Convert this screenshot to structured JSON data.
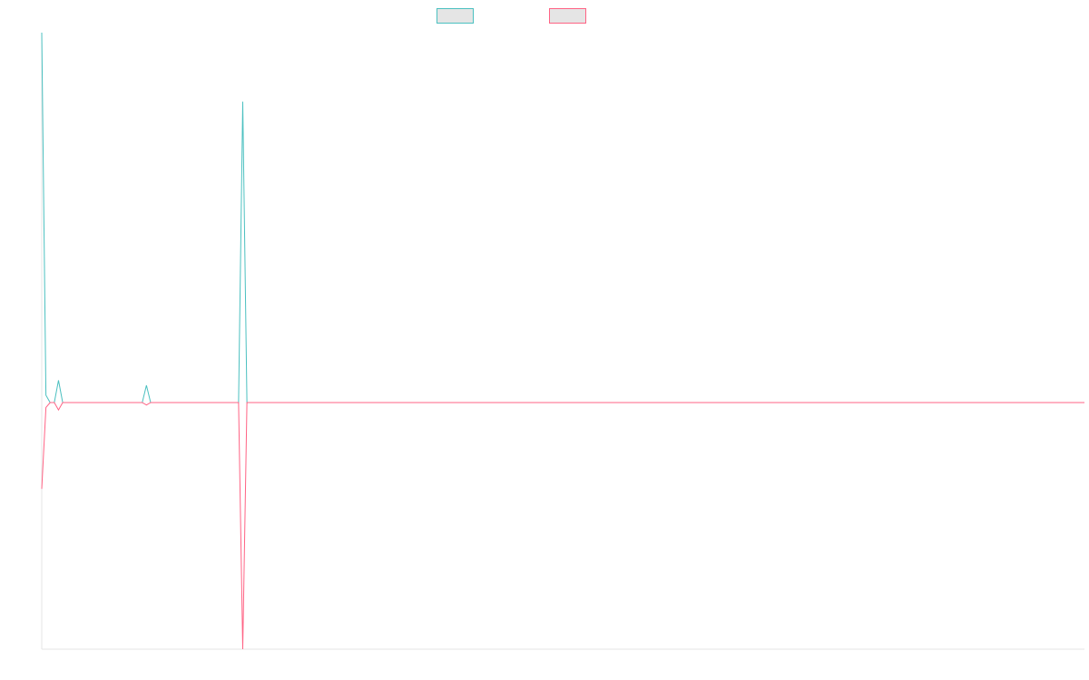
{
  "chart_data": {
    "type": "line",
    "title": "",
    "xlabel": "",
    "ylabel": "",
    "grid": false,
    "axes_visible": true,
    "tick_labels_visible": false,
    "x": [
      0,
      1,
      2,
      3,
      4,
      5,
      6,
      7,
      8,
      9,
      10,
      11,
      12,
      13,
      14,
      15,
      16,
      17,
      18,
      19,
      20,
      21,
      22,
      23,
      24,
      25,
      26,
      27,
      28,
      29,
      30,
      31,
      32,
      33,
      34,
      35,
      36,
      37,
      38,
      39,
      40,
      41,
      42,
      43,
      44,
      45,
      46,
      47,
      48,
      49,
      50,
      51,
      52,
      53,
      54,
      55,
      56,
      57,
      58,
      59,
      60,
      61,
      62,
      63,
      64,
      65,
      66,
      67,
      68,
      69,
      70,
      71,
      72,
      73,
      74,
      75,
      76,
      77,
      78,
      79,
      80,
      81,
      82,
      83,
      84,
      85,
      86,
      87,
      88,
      89,
      90,
      91,
      92,
      93,
      94,
      95,
      96,
      97,
      98,
      99,
      100,
      101,
      102,
      103,
      104,
      105,
      106,
      107,
      108,
      109,
      110,
      111,
      112,
      113,
      114,
      115,
      116,
      117,
      118,
      119,
      120,
      121,
      122,
      123,
      124,
      125,
      126,
      127,
      128,
      129,
      130,
      131,
      132,
      133,
      134,
      135,
      136,
      137,
      138,
      139,
      140,
      141,
      142,
      143,
      144,
      145,
      146,
      147,
      148,
      149,
      150,
      151,
      152,
      153,
      154,
      155,
      156,
      157,
      158,
      159,
      160,
      161,
      162,
      163,
      164,
      165,
      166,
      167,
      168,
      169,
      170,
      171,
      172,
      173,
      174,
      175,
      176,
      177,
      178,
      179,
      180,
      181,
      182,
      183,
      184,
      185,
      186,
      187,
      188,
      189,
      190,
      191,
      192,
      193,
      194,
      195,
      196,
      197,
      198,
      199,
      200,
      201,
      202,
      203,
      204,
      205,
      206,
      207,
      208,
      209,
      210,
      211,
      212,
      213,
      214,
      215,
      216,
      217,
      218,
      219,
      220,
      221,
      222,
      223,
      224,
      225,
      226,
      227,
      228,
      229,
      230,
      231,
      232,
      233,
      234,
      235,
      236,
      237,
      238,
      239,
      240,
      241,
      242,
      243,
      244,
      245,
      246,
      247,
      248,
      249
    ],
    "ylim": [
      -1,
      1.5
    ],
    "legend": {
      "placement": "top-center",
      "entries": [
        {
          "label": "",
          "color": "#4bc0c0",
          "fill": "#e5e5e5"
        },
        {
          "label": "",
          "color": "#ff6384",
          "fill": "#e5e5e5"
        }
      ]
    },
    "series": [
      {
        "color": "#4bc0c0",
        "sparse_values": {
          "0": 1.5,
          "1": 0.03,
          "2": 0.0,
          "3": 0.0,
          "4": 0.09,
          "5": 0.0,
          "24": 0.0,
          "25": 0.07,
          "26": 0.0,
          "47": 0.0,
          "48": 1.22,
          "49": 0.0
        },
        "default": 0
      },
      {
        "color": "#ff6384",
        "sparse_values": {
          "0": -0.35,
          "1": -0.02,
          "2": 0.0,
          "3": 0.0,
          "4": -0.03,
          "5": 0.0,
          "24": 0.0,
          "25": -0.01,
          "26": 0.0,
          "47": 0.0,
          "48": -1.0,
          "49": 0.0
        },
        "default": 0
      }
    ]
  }
}
